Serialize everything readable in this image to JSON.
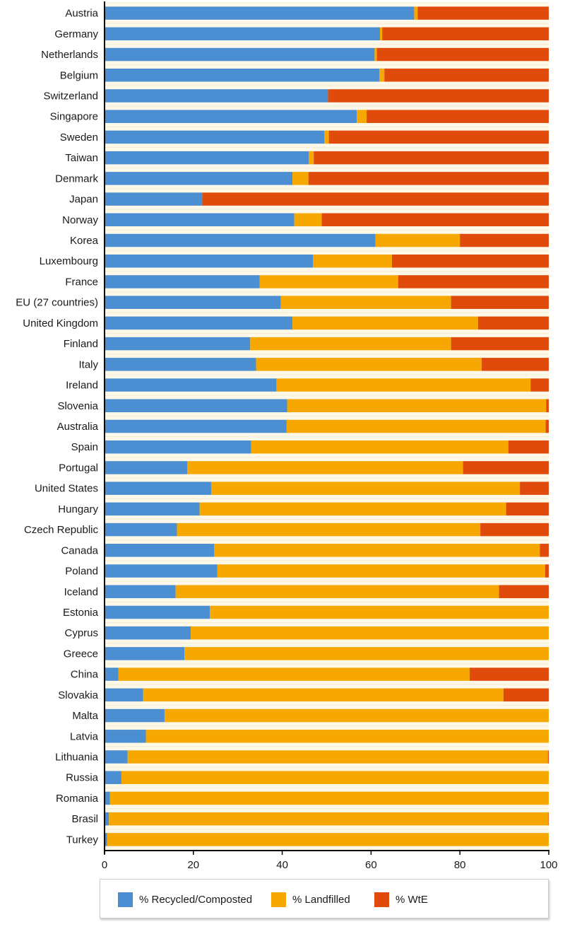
{
  "chart_data": {
    "type": "bar",
    "orientation": "horizontal",
    "stacked": true,
    "title": "",
    "xlabel": "",
    "ylabel": "",
    "xlim": [
      0,
      100
    ],
    "x_ticks": [
      0,
      20,
      40,
      60,
      80,
      100
    ],
    "grid": false,
    "legend_position": "bottom",
    "colors": {
      "background": "#fdf8e8",
      "recycled": "#4b8ed1",
      "landfilled": "#f7a800",
      "wte": "#e04b0c",
      "axis": "#000000"
    },
    "categories": [
      "Austria",
      "Germany",
      "Netherlands",
      "Belgium",
      "Switzerland",
      "Singapore",
      "Sweden",
      "Taiwan",
      "Denmark",
      "Japan",
      "Norway",
      "Korea",
      "Luxembourg",
      "France",
      "EU (27 countries)",
      "United Kingdom",
      "Finland",
      "Italy",
      "Ireland",
      "Slovenia",
      "Australia",
      "Spain",
      "Portugal",
      "United States",
      "Hungary",
      "Czech Republic",
      "Canada",
      "Poland",
      "Iceland",
      "Estonia",
      "Cyprus",
      "Greece",
      "China",
      "Slovakia",
      "Malta",
      "Latvia",
      "Lithuania",
      "Russia",
      "Romania",
      "Brasil",
      "Turkey"
    ],
    "series": [
      {
        "name": "% Recycled/Composted",
        "color": "#4b8ed1",
        "values": [
          69.7,
          62.0,
          60.8,
          61.9,
          50.3,
          56.8,
          49.5,
          46.0,
          42.3,
          22.0,
          42.7,
          61.0,
          46.9,
          34.9,
          39.7,
          42.3,
          32.8,
          34.1,
          38.7,
          41.1,
          41.0,
          33.0,
          18.6,
          24.0,
          21.4,
          16.3,
          24.7,
          25.4,
          16.0,
          23.7,
          19.4,
          18.0,
          3.1,
          8.7,
          13.5,
          9.3,
          5.2,
          3.8,
          1.2,
          1.0,
          0.6
        ]
      },
      {
        "name": "% Landfilled",
        "color": "#f7a800",
        "values": [
          0.8,
          0.5,
          0.5,
          1.1,
          0.0,
          2.2,
          1.0,
          1.1,
          3.6,
          0.0,
          6.2,
          19.0,
          17.8,
          31.2,
          38.3,
          41.8,
          45.2,
          50.8,
          57.2,
          58.3,
          58.3,
          57.9,
          62.1,
          69.5,
          69.0,
          68.3,
          73.3,
          73.8,
          72.8,
          76.3,
          80.6,
          82.0,
          79.1,
          81.1,
          86.5,
          90.7,
          94.6,
          96.2,
          98.8,
          98.9,
          99.4
        ]
      },
      {
        "name": "% WtE",
        "color": "#e04b0c",
        "values": [
          29.5,
          37.5,
          38.7,
          37.0,
          49.7,
          41.0,
          49.5,
          52.9,
          54.1,
          78.0,
          51.1,
          20.0,
          35.3,
          33.9,
          22.0,
          15.9,
          22.0,
          15.1,
          4.1,
          0.6,
          0.7,
          9.1,
          19.3,
          6.5,
          9.6,
          15.4,
          2.0,
          0.8,
          11.2,
          0.0,
          0.0,
          0.0,
          17.8,
          10.2,
          0.0,
          0.0,
          0.2,
          0.0,
          0.0,
          0.1,
          0.0
        ]
      }
    ]
  }
}
